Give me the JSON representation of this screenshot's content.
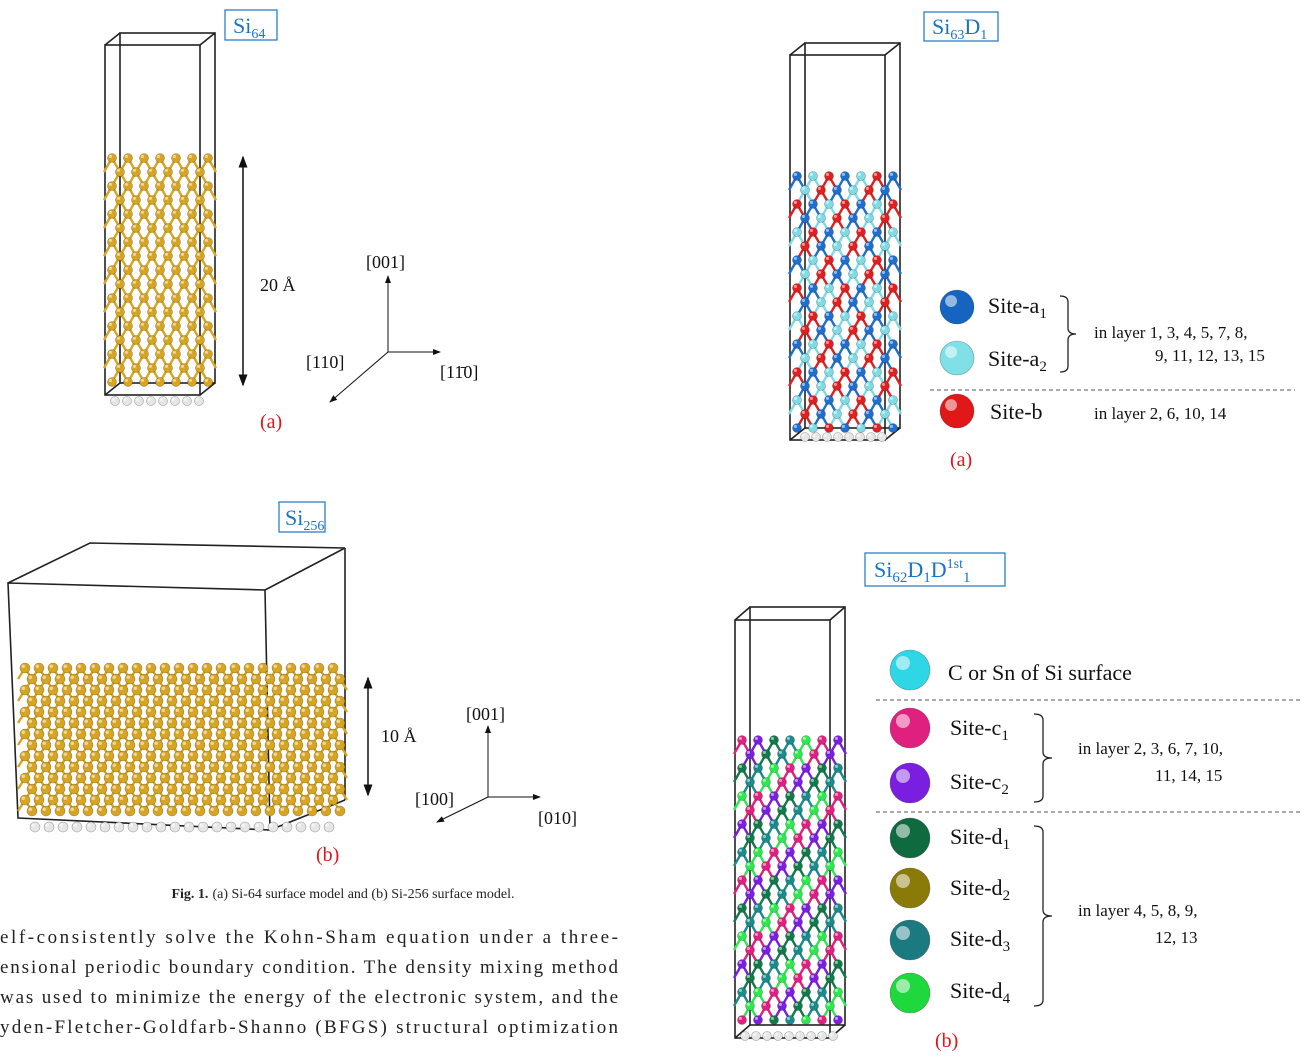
{
  "figure_left": {
    "panel_a": {
      "label": [
        "Si",
        "64"
      ],
      "scale": "20 Å",
      "axes": [
        "[001]",
        "[110]",
        "[11̄0]"
      ],
      "tag": "(a)"
    },
    "panel_b": {
      "label": [
        "Si",
        "256"
      ],
      "scale": "10 Å",
      "axes": [
        "[001]",
        "[100]",
        "[010]"
      ],
      "tag": "(b)"
    },
    "caption": {
      "number": "Fig. 1.",
      "text": "(a) Si-64 surface model and (b) Si-256 surface model."
    }
  },
  "body_text": [
    "elf-consistently solve the Kohn-Sham equation under a three-",
    "ensional periodic boundary condition. The density mixing method",
    "was used to minimize the energy of the electronic system, and the",
    "yden-Fletcher-Goldfarb-Shanno (BFGS) structural optimization"
  ],
  "figure_right": {
    "panel_a": {
      "label": [
        "Si",
        "63",
        "D",
        "1"
      ],
      "legend": [
        [
          "Site-a",
          "1"
        ],
        [
          "Site-a",
          "2"
        ],
        [
          "Site-b"
        ]
      ],
      "groups": [
        [
          "in layer 1, 3, 4, 5, 7, 8,",
          "9, 11, 12, 13, 15"
        ],
        [
          "in layer 2, 6, 10, 14"
        ]
      ],
      "tag": "(a)"
    },
    "panel_b": {
      "label": [
        "Si",
        "62",
        "D",
        "1",
        "D",
        "1st",
        "1"
      ],
      "legend": [
        [
          "C or Sn of Si surface"
        ],
        [
          "Site-c",
          "1"
        ],
        [
          "Site-c",
          "2"
        ],
        [
          "Site-d",
          "1"
        ],
        [
          "Site-d",
          "2"
        ],
        [
          "Site-d",
          "3"
        ],
        [
          "Site-d",
          "4"
        ]
      ],
      "groups": [
        [
          "in layer 2, 3, 6, 7, 10,",
          "11, 14, 15"
        ],
        [
          "in layer 4, 5, 8, 9,",
          "12, 13"
        ]
      ],
      "tag": "(b)"
    }
  }
}
